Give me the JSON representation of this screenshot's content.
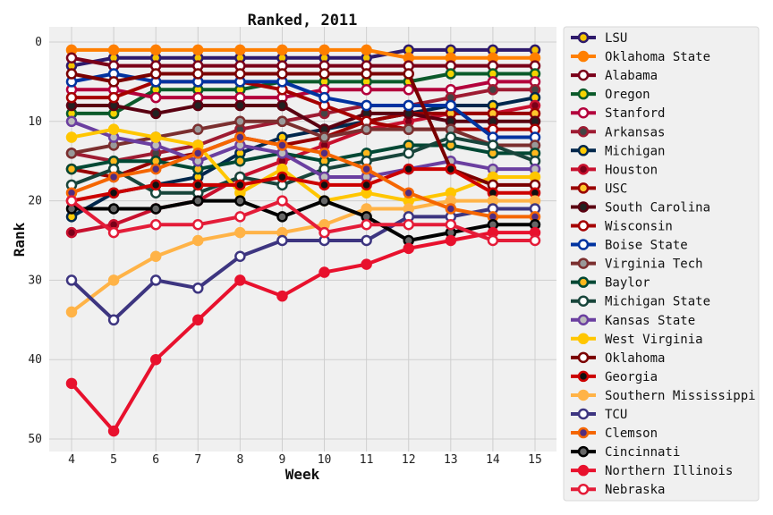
{
  "chart_data": {
    "type": "line",
    "title": "Ranked, 2011",
    "xlabel": "Week",
    "ylabel": "Rank",
    "x": [
      4,
      5,
      6,
      7,
      8,
      9,
      10,
      11,
      12,
      13,
      14,
      15
    ],
    "xlim": [
      4,
      15
    ],
    "ylim": [
      50,
      0
    ],
    "yticks": [
      0,
      10,
      20,
      30,
      40,
      50
    ],
    "y_inverted": true,
    "grid": true,
    "legend_position": "right",
    "series": [
      {
        "name": "LSU",
        "color": "#2e1a6b",
        "marker": "#f5c400",
        "values": [
          3,
          2,
          2,
          2,
          2,
          2,
          2,
          2,
          1,
          1,
          1,
          1
        ]
      },
      {
        "name": "Oklahoma State",
        "color": "#ff7f00",
        "marker": "#ff7f00",
        "values": [
          1,
          1,
          1,
          1,
          1,
          1,
          1,
          1,
          2,
          2,
          2,
          2
        ]
      },
      {
        "name": "Alabama",
        "color": "#7a0019",
        "marker": "#ffffff",
        "values": [
          2,
          3,
          3,
          3,
          3,
          3,
          3,
          3,
          3,
          3,
          3,
          3
        ]
      },
      {
        "name": "Oregon",
        "color": "#0b5a2a",
        "marker": "#f5d300",
        "values": [
          9,
          9,
          6,
          6,
          6,
          5,
          5,
          5,
          5,
          4,
          4,
          4
        ]
      },
      {
        "name": "Stanford",
        "color": "#b3003c",
        "marker": "#ffffff",
        "values": [
          6,
          6,
          7,
          7,
          7,
          7,
          6,
          6,
          6,
          6,
          5,
          5
        ]
      },
      {
        "name": "Arkansas",
        "color": "#9e1b32",
        "marker": "#444444",
        "values": [
          14,
          15,
          14,
          13,
          11,
          10,
          9,
          8,
          8,
          7,
          6,
          6
        ]
      },
      {
        "name": "Michigan",
        "color": "#00274c",
        "marker": "#ffcb05",
        "values": [
          22,
          19,
          18,
          17,
          14,
          12,
          11,
          10,
          9,
          8,
          8,
          7
        ]
      },
      {
        "name": "Houston",
        "color": "#c8102e",
        "marker": "#7a0019",
        "values": [
          24,
          23,
          21,
          20,
          17,
          15,
          13,
          11,
          10,
          9,
          9,
          8
        ]
      },
      {
        "name": "USC",
        "color": "#990000",
        "marker": "#ffc72c",
        "values": [
          16,
          17,
          15,
          14,
          12,
          13,
          12,
          10,
          9,
          9,
          9,
          9
        ]
      },
      {
        "name": "South Carolina",
        "color": "#5a0011",
        "marker": "#222222",
        "values": [
          8,
          8,
          9,
          8,
          8,
          8,
          11,
          9,
          9,
          10,
          10,
          10
        ]
      },
      {
        "name": "Wisconsin",
        "color": "#a50000",
        "marker": "#ffffff",
        "values": [
          7,
          7,
          5,
          5,
          5,
          6,
          8,
          10,
          11,
          11,
          11,
          11
        ]
      },
      {
        "name": "Boise State",
        "color": "#0033a0",
        "marker": "#ffffff",
        "values": [
          5,
          4,
          5,
          5,
          5,
          5,
          7,
          8,
          8,
          8,
          12,
          12
        ]
      },
      {
        "name": "Virginia Tech",
        "color": "#7b2f2f",
        "marker": "#999999",
        "values": [
          14,
          13,
          12,
          11,
          10,
          10,
          12,
          11,
          11,
          11,
          13,
          13
        ]
      },
      {
        "name": "Baylor",
        "color": "#004834",
        "marker": "#ffb81c",
        "values": [
          16,
          15,
          15,
          16,
          15,
          14,
          15,
          14,
          13,
          13,
          14,
          14
        ]
      },
      {
        "name": "Michigan State",
        "color": "#18453b",
        "marker": "#ffffff",
        "values": [
          18,
          16,
          19,
          19,
          17,
          18,
          16,
          15,
          14,
          12,
          13,
          15
        ]
      },
      {
        "name": "Kansas State",
        "color": "#6b3fa0",
        "marker": "#bbbbbb",
        "values": [
          10,
          12,
          13,
          15,
          13,
          14,
          17,
          17,
          16,
          15,
          16,
          16
        ]
      },
      {
        "name": "West Virginia",
        "color": "#ffc600",
        "marker": "#ffc600",
        "values": [
          12,
          11,
          12,
          13,
          19,
          16,
          20,
          19,
          20,
          19,
          17,
          17
        ]
      },
      {
        "name": "Oklahoma",
        "color": "#7a0000",
        "marker": "#ffffff",
        "values": [
          4,
          5,
          4,
          4,
          4,
          4,
          4,
          4,
          4,
          16,
          18,
          18
        ]
      },
      {
        "name": "Georgia",
        "color": "#cc0000",
        "marker": "#111111",
        "values": [
          20,
          19,
          18,
          18,
          18,
          17,
          18,
          18,
          16,
          16,
          19,
          19
        ]
      },
      {
        "name": "Southern Mississippi",
        "color": "#ffb347",
        "marker": "#ffb347",
        "values": [
          34,
          30,
          27,
          25,
          24,
          24,
          23,
          21,
          21,
          20,
          20,
          20
        ]
      },
      {
        "name": "TCU",
        "color": "#3d3580",
        "marker": "#ffffff",
        "values": [
          30,
          35,
          30,
          31,
          27,
          25,
          25,
          25,
          22,
          22,
          21,
          21
        ]
      },
      {
        "name": "Clemson",
        "color": "#f56600",
        "marker": "#522d80",
        "values": [
          19,
          17,
          16,
          14,
          12,
          13,
          14,
          16,
          19,
          21,
          22,
          22
        ]
      },
      {
        "name": "Cincinnati",
        "color": "#000000",
        "marker": "#666666",
        "values": [
          21,
          21,
          21,
          20,
          20,
          22,
          20,
          22,
          25,
          24,
          23,
          23
        ]
      },
      {
        "name": "Northern Illinois",
        "color": "#e8112d",
        "marker": "#e8112d",
        "values": [
          43,
          49,
          40,
          35,
          30,
          32,
          29,
          28,
          26,
          25,
          24,
          24
        ]
      },
      {
        "name": "Nebraska",
        "color": "#e41c38",
        "marker": "#ffffff",
        "values": [
          20,
          24,
          23,
          23,
          22,
          20,
          24,
          23,
          23,
          23,
          25,
          25
        ]
      }
    ]
  }
}
